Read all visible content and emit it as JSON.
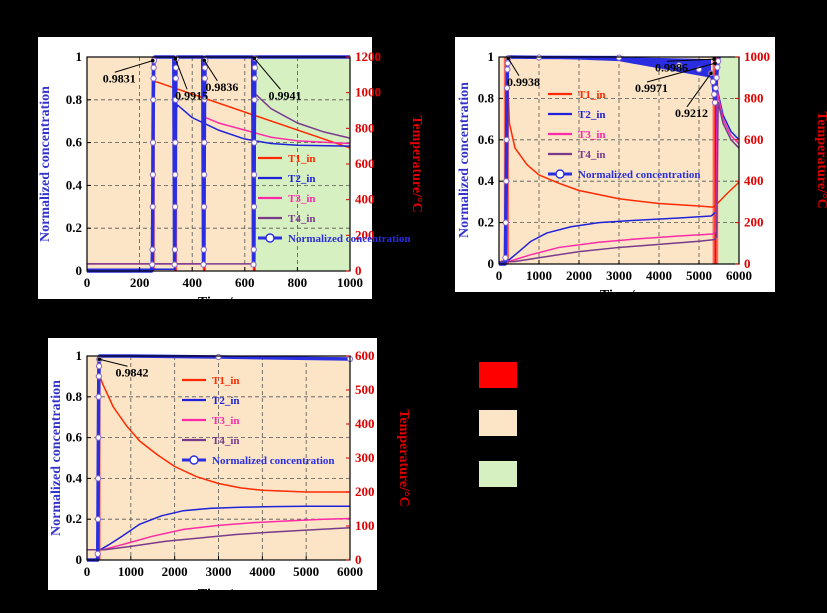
{
  "colors": {
    "background": "#000000",
    "panel": "#ffffff",
    "pre": "#fbe5c6",
    "post": "#d7f0c2",
    "breakthrough": "#ff0000",
    "T1": "#ff2a00",
    "T2": "#1f22d8",
    "T3": "#ff2aa8",
    "T4": "#7a3a8c",
    "conc": "#2a2ee0",
    "left_axis_label": "#3333cc",
    "right_axis_label": "#e00000",
    "grid": "#555555"
  },
  "legend_key": {
    "items": [
      {
        "color": "#ff0000",
        "label": ""
      },
      {
        "color": "#fbe5c6",
        "label": ""
      },
      {
        "color": "#d7f0c2",
        "label": ""
      }
    ]
  },
  "chart_data": [
    {
      "type": "line",
      "name": "chart-a",
      "title": "",
      "xlabel": "Time/s",
      "ylabel": "Normalized concentration",
      "y2label": "Temperature/°C",
      "xlim": [
        0,
        1000
      ],
      "ylim": [
        0,
        1
      ],
      "y2lim": [
        0,
        1200
      ],
      "xticks": [
        0,
        200,
        400,
        600,
        800,
        1000
      ],
      "yticks": [
        0,
        0.2,
        0.4,
        0.6,
        0.8,
        1
      ],
      "y2ticks": [
        0,
        200,
        400,
        600,
        800,
        1000,
        1200
      ],
      "yticklabels": [
        "0",
        "0.2",
        "0.4",
        "0.6",
        "0.8",
        "1"
      ],
      "regions": [
        {
          "kind": "pre",
          "x0": 0,
          "x1": 640
        },
        {
          "kind": "post",
          "x0": 640,
          "x1": 1000
        }
      ],
      "breakthroughs": [
        {
          "x0": 245,
          "x1": 258
        },
        {
          "x0": 330,
          "x1": 343
        },
        {
          "x0": 440,
          "x1": 452
        },
        {
          "x0": 630,
          "x1": 642
        }
      ],
      "series": [
        {
          "name": "T1_in",
          "axis": "y2",
          "color_key": "T1",
          "x": [
            0,
            248,
            252,
            255,
            258,
            262,
            265,
            1000
          ],
          "y": [
            10,
            10,
            1060,
            1060,
            1060,
            1060,
            1060,
            690
          ]
        },
        {
          "name": "T2_in",
          "axis": "y2",
          "color_key": "T2",
          "x": [
            0,
            333,
            336,
            345,
            400,
            500,
            600,
            700,
            800,
            1000
          ],
          "y": [
            10,
            10,
            900,
            930,
            860,
            790,
            740,
            715,
            705,
            700
          ]
        },
        {
          "name": "T3_in",
          "axis": "y2",
          "color_key": "T3",
          "x": [
            0,
            443,
            446,
            452,
            500,
            600,
            700,
            800,
            1000
          ],
          "y": [
            40,
            40,
            850,
            860,
            830,
            790,
            750,
            730,
            715
          ]
        },
        {
          "name": "T4_in",
          "axis": "y2",
          "color_key": "T4",
          "x": [
            0,
            633,
            637,
            642,
            700,
            800,
            900,
            1000
          ],
          "y": [
            40,
            40,
            1000,
            990,
            910,
            830,
            780,
            745
          ]
        },
        {
          "name": "Normalized concentration",
          "axis": "y",
          "color_key": "conc",
          "markers": true,
          "x": [
            0,
            245,
            248,
            249,
            250,
            250.5,
            251,
            252,
            253,
            253.5,
            255,
            258,
            330,
            333,
            334,
            335,
            335.5,
            336,
            337,
            338,
            338.5,
            340,
            343,
            440,
            443,
            444,
            445,
            445.5,
            446,
            447,
            448,
            448.5,
            450,
            452,
            630,
            633,
            634,
            635,
            635.5,
            636,
            637,
            638,
            638.5,
            640,
            642,
            1000
          ],
          "y": [
            0,
            0,
            0.03,
            0.1,
            0.3,
            0.45,
            0.6,
            0.8,
            0.9,
            0.95,
            0.983,
            1,
            1,
            0.03,
            0.1,
            0.3,
            0.45,
            0.6,
            0.8,
            0.9,
            0.95,
            0.9915,
            1,
            1,
            0.03,
            0.1,
            0.3,
            0.45,
            0.6,
            0.8,
            0.9,
            0.95,
            0.9836,
            1,
            1,
            0.03,
            0.1,
            0.3,
            0.45,
            0.6,
            0.8,
            0.9,
            0.95,
            0.9941,
            1,
            1
          ]
        }
      ],
      "annotations": [
        {
          "text": "0.9831",
          "x": 250,
          "y": 0.9831,
          "tx": 60,
          "ty": 0.91
        },
        {
          "text": "0.9915",
          "x": 336,
          "y": 0.9915,
          "tx": 335,
          "ty": 0.83
        },
        {
          "text": "0.9836",
          "x": 446,
          "y": 0.9836,
          "tx": 450,
          "ty": 0.87
        },
        {
          "text": "0.9941",
          "x": 636,
          "y": 0.9941,
          "tx": 690,
          "ty": 0.83
        }
      ],
      "legend": {
        "placement": "center-right",
        "items": [
          {
            "label": "T1_in",
            "color_key": "T1"
          },
          {
            "label": "T2_in",
            "color_key": "T2"
          },
          {
            "label": "T3_in",
            "color_key": "T3"
          },
          {
            "label": "T4_in",
            "color_key": "T4"
          },
          {
            "label": "Normalized concentration",
            "color_key": "conc",
            "marker": true
          }
        ]
      }
    },
    {
      "type": "line",
      "name": "chart-b",
      "title": "",
      "xlabel": "Time/s",
      "ylabel": "Normalized concentration",
      "y2label": "Temperature/°C",
      "xlim": [
        0,
        6000
      ],
      "ylim": [
        0,
        1
      ],
      "y2lim": [
        0,
        1000
      ],
      "xticks": [
        0,
        1000,
        2000,
        3000,
        4000,
        5000,
        6000
      ],
      "yticks": [
        0,
        0.2,
        0.4,
        0.6,
        0.8,
        1
      ],
      "y2ticks": [
        0,
        200,
        400,
        600,
        800,
        1000
      ],
      "yticklabels": [
        "0",
        "0.2",
        "0.4",
        "0.6",
        "0.8",
        "1"
      ],
      "regions": [
        {
          "kind": "pre",
          "x0": 0,
          "x1": 5500
        },
        {
          "kind": "post",
          "x0": 5500,
          "x1": 6000
        }
      ],
      "breakthroughs": [
        {
          "x0": 120,
          "x1": 250
        },
        {
          "x0": 5340,
          "x1": 5480
        }
      ],
      "series": [
        {
          "name": "T1_in",
          "axis": "y2",
          "color_key": "T1",
          "x": [
            0,
            180,
            220,
            260,
            400,
            700,
            1000,
            1500,
            2000,
            3000,
            4000,
            5000,
            5350,
            5500,
            5700,
            6000
          ],
          "y": [
            10,
            10,
            880,
            680,
            560,
            480,
            430,
            390,
            355,
            315,
            292,
            280,
            275,
            300,
            340,
            395
          ]
        },
        {
          "name": "T2_in",
          "axis": "y2",
          "color_key": "T2",
          "x": [
            0,
            250,
            500,
            800,
            1200,
            1800,
            2500,
            3500,
            4500,
            5300,
            5420,
            5450,
            5600,
            5800,
            6000
          ],
          "y": [
            10,
            20,
            60,
            110,
            150,
            180,
            200,
            212,
            222,
            232,
            250,
            850,
            720,
            640,
            600
          ]
        },
        {
          "name": "T3_in",
          "axis": "y2",
          "color_key": "T3",
          "x": [
            0,
            300,
            800,
            1500,
            2500,
            3500,
            4500,
            5350,
            5420,
            5460,
            5600,
            5800,
            6000
          ],
          "y": [
            10,
            15,
            45,
            80,
            105,
            122,
            135,
            145,
            160,
            830,
            700,
            620,
            580
          ]
        },
        {
          "name": "T4_in",
          "axis": "y2",
          "color_key": "T4",
          "x": [
            0,
            400,
            1000,
            2000,
            3000,
            4000,
            5000,
            5380,
            5440,
            5480,
            5600,
            5800,
            6000
          ],
          "y": [
            10,
            12,
            30,
            60,
            80,
            95,
            110,
            118,
            130,
            780,
            680,
            600,
            560
          ]
        },
        {
          "name": "Normalized concentration",
          "axis": "y",
          "color_key": "conc",
          "markers": true,
          "x": [
            0,
            150,
            160,
            170,
            180,
            190,
            200,
            210,
            220,
            230,
            250,
            1000,
            3000,
            4500,
            5000,
            5300,
            5350,
            5380,
            5400,
            5420,
            5440,
            5460,
            5480,
            5500
          ],
          "y": [
            0,
            0,
            0.03,
            0.2,
            0.4,
            0.6,
            0.85,
            0.94,
            0.97,
            0.9938,
            1,
            0.998,
            0.997,
            0.96,
            0.94,
            0.9212,
            0.88,
            0.82,
            0.78,
            0.85,
            0.9,
            0.95,
            0.98,
            1
          ]
        }
      ],
      "band": {
        "x": [
          250,
          3000,
          5300
        ],
        "upper": [
          1,
          1,
          0.99
        ],
        "lower": [
          1,
          0.98,
          0.9
        ]
      },
      "annotations": [
        {
          "text": "0.9938",
          "x": 230,
          "y": 0.9938,
          "tx": 200,
          "ty": 0.89
        },
        {
          "text": "0.9986",
          "x": 5380,
          "y": 0.99,
          "tx": 3900,
          "ty": 0.96
        },
        {
          "text": "0.9971",
          "x": 5400,
          "y": 0.97,
          "tx": 3400,
          "ty": 0.86
        },
        {
          "text": "0.9212",
          "x": 5300,
          "y": 0.9212,
          "tx": 4400,
          "ty": 0.74
        }
      ],
      "legend": {
        "placement": "center-left",
        "items": [
          {
            "label": "T1_in",
            "color_key": "T1"
          },
          {
            "label": "T2_in",
            "color_key": "T2"
          },
          {
            "label": "T3_in",
            "color_key": "T3"
          },
          {
            "label": "T4_in",
            "color_key": "T4"
          },
          {
            "label": "Normalized concentration",
            "color_key": "conc",
            "marker": true
          }
        ]
      }
    },
    {
      "type": "line",
      "name": "chart-c",
      "title": "",
      "xlabel": "Time/s",
      "ylabel": "Normalized concentration",
      "y2label": "Temperature/°C",
      "xlim": [
        0,
        6000
      ],
      "ylim": [
        0,
        1
      ],
      "y2lim": [
        0,
        600
      ],
      "xticks": [
        0,
        1000,
        2000,
        3000,
        4000,
        5000,
        6000
      ],
      "yticks": [
        0,
        0.2,
        0.4,
        0.6,
        0.8,
        1
      ],
      "y2ticks": [
        0,
        100,
        200,
        300,
        400,
        500,
        600
      ],
      "yticklabels": [
        "0",
        "0.2",
        "0.4",
        "0.6",
        "0.8",
        "1"
      ],
      "regions": [
        {
          "kind": "pre",
          "x0": 0,
          "x1": 6000
        }
      ],
      "breakthroughs": [
        {
          "x0": 230,
          "x1": 310
        }
      ],
      "series": [
        {
          "name": "T1_in",
          "axis": "y2",
          "color_key": "T1",
          "x": [
            0,
            240,
            280,
            350,
            600,
            900,
            1200,
            1600,
            2000,
            2500,
            3000,
            3500,
            4000,
            5000,
            6000
          ],
          "y": [
            30,
            30,
            545,
            520,
            450,
            395,
            350,
            310,
            275,
            245,
            225,
            212,
            205,
            200,
            200
          ]
        },
        {
          "name": "T2_in",
          "axis": "y2",
          "color_key": "T2",
          "x": [
            0,
            300,
            500,
            800,
            1200,
            1700,
            2200,
            2800,
            3500,
            4200,
            5000,
            6000
          ],
          "y": [
            30,
            30,
            45,
            70,
            105,
            130,
            145,
            152,
            155,
            157,
            158,
            158
          ]
        },
        {
          "name": "T3_in",
          "axis": "y2",
          "color_key": "T3",
          "x": [
            0,
            350,
            800,
            1500,
            2200,
            3000,
            3800,
            4600,
            5400,
            6000
          ],
          "y": [
            30,
            30,
            45,
            70,
            90,
            102,
            110,
            115,
            120,
            122
          ]
        },
        {
          "name": "T4_in",
          "axis": "y2",
          "color_key": "T4",
          "x": [
            0,
            400,
            1000,
            1800,
            2600,
            3400,
            4200,
            5000,
            6000
          ],
          "y": [
            30,
            30,
            40,
            55,
            65,
            75,
            82,
            88,
            95
          ]
        },
        {
          "name": "Normalized concentration",
          "axis": "y",
          "color_key": "conc",
          "markers": true,
          "x": [
            0,
            240,
            245,
            250,
            255,
            260,
            265,
            270,
            275,
            280,
            290,
            300,
            1000,
            3000,
            6000
          ],
          "y": [
            0,
            0,
            0.03,
            0.2,
            0.4,
            0.6,
            0.8,
            0.9,
            0.95,
            0.9842,
            1,
            1,
            1,
            0.995,
            0.985
          ]
        }
      ],
      "annotations": [
        {
          "text": "0.9842",
          "x": 280,
          "y": 0.9842,
          "tx": 650,
          "ty": 0.93
        }
      ],
      "legend": {
        "placement": "top-right",
        "items": [
          {
            "label": "T1_in",
            "color_key": "T1"
          },
          {
            "label": "T2_in",
            "color_key": "T2"
          },
          {
            "label": "T3_in",
            "color_key": "T3"
          },
          {
            "label": "T4_in",
            "color_key": "T4"
          },
          {
            "label": "Normalized concentration",
            "color_key": "conc",
            "marker": true
          }
        ]
      }
    }
  ]
}
